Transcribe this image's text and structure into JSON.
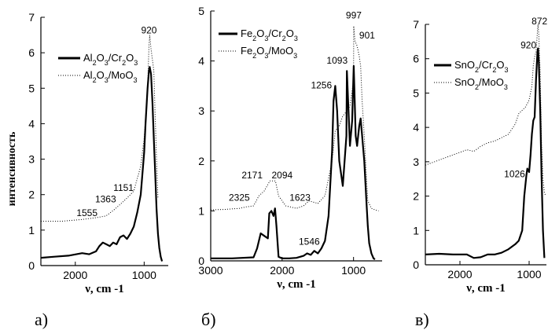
{
  "figure": {
    "ylabel": "интенсивность",
    "line_color": "#000000"
  },
  "chart_data": [
    {
      "type": "line",
      "panel_label": "а)",
      "xlabel": "ν, cm -1",
      "xlim": [
        2500,
        650
      ],
      "ylim": [
        0,
        7
      ],
      "xticks": [
        2000,
        1000
      ],
      "yticks": [
        0,
        1,
        2,
        3,
        4,
        5,
        6,
        7
      ],
      "legend": [
        {
          "text": "Al2O3/Cr2O3",
          "parts": [
            [
              "Al",
              ""
            ],
            [
              "2",
              "sub"
            ],
            [
              "O",
              ""
            ],
            [
              "3",
              "sub"
            ],
            [
              "/Cr",
              ""
            ],
            [
              "2",
              "sub"
            ],
            [
              "O",
              ""
            ],
            [
              "3",
              "sub"
            ]
          ],
          "style": "solid"
        },
        {
          "text": "Al2O3/MoO3",
          "parts": [
            [
              "Al",
              ""
            ],
            [
              "2",
              "sub"
            ],
            [
              "O",
              ""
            ],
            [
              "3",
              "sub"
            ],
            [
              "/MoO",
              ""
            ],
            [
              "3",
              "sub"
            ]
          ],
          "style": "dotted"
        }
      ],
      "annotations": [
        {
          "text": "920",
          "x": 930,
          "y": 6.55
        },
        {
          "text": "1151",
          "x": 1300,
          "y": 2.1
        },
        {
          "text": "1363",
          "x": 1560,
          "y": 1.78
        },
        {
          "text": "1555",
          "x": 1830,
          "y": 1.4
        }
      ],
      "series": [
        {
          "style": "solid",
          "x": [
            2500,
            2300,
            2100,
            1900,
            1800,
            1700,
            1650,
            1600,
            1550,
            1500,
            1450,
            1400,
            1350,
            1300,
            1250,
            1200,
            1150,
            1100,
            1050,
            1000,
            980,
            950,
            930,
            920,
            900,
            880,
            860,
            840,
            820,
            800,
            780,
            760,
            740
          ],
          "y": [
            0.22,
            0.25,
            0.28,
            0.35,
            0.32,
            0.4,
            0.55,
            0.65,
            0.6,
            0.55,
            0.65,
            0.6,
            0.8,
            0.85,
            0.75,
            0.9,
            1.1,
            1.5,
            2.0,
            3.2,
            4.0,
            5.0,
            5.5,
            5.6,
            5.4,
            4.6,
            3.6,
            2.6,
            1.6,
            0.9,
            0.5,
            0.25,
            0.12
          ]
        },
        {
          "style": "dotted",
          "x": [
            2500,
            2200,
            1900,
            1700,
            1555,
            1450,
            1363,
            1250,
            1151,
            1050,
            1000,
            950,
            930,
            920,
            900,
            880,
            860,
            840,
            820,
            800
          ],
          "y": [
            1.25,
            1.25,
            1.3,
            1.35,
            1.4,
            1.55,
            1.7,
            1.9,
            2.1,
            2.8,
            3.6,
            5.0,
            6.2,
            6.5,
            6.1,
            5.8,
            5.5,
            4.2,
            3.0,
            1.9
          ]
        }
      ]
    },
    {
      "type": "line",
      "panel_label": "б)",
      "xlabel": "ν, cm -1",
      "xlim": [
        3000,
        600
      ],
      "ylim": [
        0,
        5
      ],
      "xticks": [
        3000,
        2000,
        1000
      ],
      "yticks": [
        0,
        1,
        2,
        3,
        4,
        5
      ],
      "legend": [
        {
          "text": "Fe2O3/Cr2O3",
          "parts": [
            [
              "Fe",
              ""
            ],
            [
              "2",
              "sub"
            ],
            [
              "O",
              ""
            ],
            [
              "3",
              "sub"
            ],
            [
              "/Cr",
              ""
            ],
            [
              "2",
              "sub"
            ],
            [
              "O",
              ""
            ],
            [
              "3",
              "sub"
            ]
          ],
          "style": "solid"
        },
        {
          "text": "Fe2O3/MoO3",
          "parts": [
            [
              "Fe",
              ""
            ],
            [
              "2",
              "sub"
            ],
            [
              "O",
              ""
            ],
            [
              "3",
              "sub"
            ],
            [
              "/MoO",
              ""
            ],
            [
              "3",
              "sub"
            ]
          ],
          "style": "dotted"
        }
      ],
      "annotations": [
        {
          "text": "997",
          "x": 997,
          "y": 4.85
        },
        {
          "text": "901",
          "x": 810,
          "y": 4.45
        },
        {
          "text": "1093",
          "x": 1230,
          "y": 3.95
        },
        {
          "text": "1256",
          "x": 1450,
          "y": 3.45
        },
        {
          "text": "2171",
          "x": 2420,
          "y": 1.65
        },
        {
          "text": "2094",
          "x": 2000,
          "y": 1.65
        },
        {
          "text": "2325",
          "x": 2600,
          "y": 1.2
        },
        {
          "text": "1623",
          "x": 1750,
          "y": 1.2
        },
        {
          "text": "1546",
          "x": 1620,
          "y": 0.32
        }
      ],
      "series": [
        {
          "style": "solid",
          "x": [
            3000,
            2700,
            2400,
            2350,
            2300,
            2250,
            2200,
            2180,
            2150,
            2120,
            2100,
            2080,
            2050,
            2000,
            1900,
            1800,
            1700,
            1650,
            1600,
            1550,
            1500,
            1450,
            1400,
            1350,
            1300,
            1280,
            1256,
            1230,
            1200,
            1150,
            1100,
            1093,
            1050,
            1020,
            997,
            970,
            950,
            920,
            901,
            880,
            850,
            820,
            800,
            780,
            750,
            720,
            700
          ],
          "y": [
            0.05,
            0.05,
            0.07,
            0.25,
            0.55,
            0.5,
            0.45,
            0.95,
            1.0,
            0.9,
            1.05,
            0.7,
            0.08,
            0.05,
            0.05,
            0.06,
            0.1,
            0.15,
            0.12,
            0.2,
            0.15,
            0.25,
            0.4,
            0.9,
            2.2,
            3.2,
            3.5,
            3.0,
            2.0,
            1.5,
            2.5,
            3.8,
            2.3,
            2.8,
            3.9,
            2.5,
            2.3,
            2.7,
            2.85,
            2.5,
            2.0,
            1.2,
            0.7,
            0.35,
            0.15,
            0.05,
            0.03
          ]
        },
        {
          "style": "dotted",
          "x": [
            3000,
            2800,
            2600,
            2500,
            2400,
            2325,
            2250,
            2171,
            2094,
            2050,
            1950,
            1800,
            1700,
            1623,
            1500,
            1400,
            1300,
            1256,
            1200,
            1150,
            1093,
            1050,
            1000,
            997,
            980,
            950,
            920,
            901,
            880,
            850,
            820,
            800,
            750,
            700,
            650
          ],
          "y": [
            1.02,
            1.03,
            1.05,
            1.08,
            1.1,
            1.3,
            1.4,
            1.6,
            1.6,
            1.3,
            1.1,
            1.05,
            1.1,
            1.2,
            1.15,
            1.3,
            2.0,
            2.6,
            2.7,
            2.9,
            3.0,
            3.1,
            3.6,
            4.7,
            4.4,
            4.3,
            4.1,
            3.9,
            3.2,
            2.5,
            1.7,
            1.2,
            1.05,
            1.02,
            1.0
          ]
        }
      ]
    },
    {
      "type": "line",
      "panel_label": "в)",
      "xlabel": "ν, cm -1",
      "xlim": [
        2500,
        750
      ],
      "ylim": [
        0,
        7
      ],
      "xticks": [
        2000,
        1000
      ],
      "yticks": [
        0,
        1,
        2,
        3,
        4,
        5,
        6,
        7
      ],
      "legend": [
        {
          "text": "SnO2/Cr2O3",
          "parts": [
            [
              "SnO",
              ""
            ],
            [
              "2",
              "sub"
            ],
            [
              "/Cr",
              ""
            ],
            [
              "2",
              "sub"
            ],
            [
              "O",
              ""
            ],
            [
              "3",
              "sub"
            ]
          ],
          "style": "solid"
        },
        {
          "text": "SnO2/MoO3",
          "parts": [
            [
              "SnO",
              ""
            ],
            [
              "2",
              "sub"
            ],
            [
              "/MoO",
              ""
            ],
            [
              "3",
              "sub"
            ]
          ],
          "style": "dotted"
        }
      ],
      "annotations": [
        {
          "text": "872",
          "x": 850,
          "y": 7.0
        },
        {
          "text": "920",
          "x": 1010,
          "y": 6.3
        },
        {
          "text": "1026",
          "x": 1210,
          "y": 2.55
        }
      ],
      "series": [
        {
          "style": "solid",
          "x": [
            2500,
            2300,
            2100,
            1900,
            1800,
            1700,
            1600,
            1500,
            1400,
            1300,
            1200,
            1150,
            1100,
            1070,
            1040,
            1026,
            1000,
            980,
            960,
            940,
            920,
            900,
            880,
            872,
            860,
            840,
            820,
            800,
            780
          ],
          "y": [
            0.3,
            0.32,
            0.3,
            0.3,
            0.2,
            0.22,
            0.3,
            0.3,
            0.35,
            0.45,
            0.6,
            0.7,
            1.0,
            2.0,
            2.6,
            2.8,
            2.7,
            3.2,
            3.8,
            4.2,
            4.3,
            5.4,
            6.2,
            6.3,
            5.9,
            4.5,
            2.6,
            1.0,
            0.2
          ]
        },
        {
          "style": "dotted",
          "x": [
            2500,
            2300,
            2100,
            1900,
            1800,
            1700,
            1600,
            1500,
            1400,
            1300,
            1200,
            1150,
            1100,
            1050,
            1000,
            960,
            940,
            920,
            900,
            880,
            872,
            860,
            840,
            820,
            800,
            780,
            760
          ],
          "y": [
            2.9,
            3.05,
            3.2,
            3.35,
            3.3,
            3.45,
            3.55,
            3.6,
            3.7,
            3.8,
            4.1,
            4.4,
            4.5,
            4.6,
            4.8,
            5.2,
            5.8,
            6.05,
            6.2,
            6.8,
            7.0,
            6.7,
            5.5,
            3.5,
            2.5,
            2.1,
            2.0
          ]
        }
      ]
    }
  ]
}
